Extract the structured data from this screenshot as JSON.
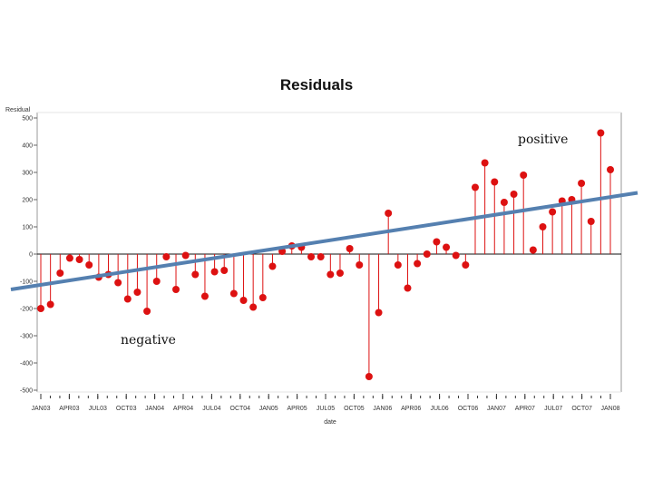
{
  "chart_data": {
    "type": "scatter",
    "title": "Residuals",
    "xlabel": "date",
    "ylabel": "Residual",
    "ylim": [
      -500,
      500
    ],
    "yticks": [
      500,
      400,
      300,
      200,
      100,
      0,
      -100,
      -200,
      -300,
      -400,
      -500
    ],
    "xticklabels": [
      "JAN03",
      "APR03",
      "JUL03",
      "OCT03",
      "JAN04",
      "APR04",
      "JUL04",
      "OCT04",
      "JAN05",
      "APR05",
      "JUL05",
      "OCT05",
      "JAN06",
      "APR06",
      "JUL06",
      "OCT06",
      "JAN07",
      "APR07",
      "JUL07",
      "OCT07",
      "JAN08"
    ],
    "grid": false,
    "series": [
      {
        "name": "Residual",
        "style": "needle",
        "color": "#dd1111",
        "values": [
          -200,
          -185,
          -70,
          -15,
          -20,
          -40,
          -85,
          -75,
          -105,
          -165,
          -140,
          -210,
          -100,
          -10,
          -130,
          -5,
          -75,
          -155,
          -65,
          -60,
          -145,
          -170,
          -195,
          -160,
          -45,
          10,
          30,
          25,
          -10,
          -10,
          -75,
          -70,
          20,
          -40,
          -450,
          -215,
          150,
          -40,
          -125,
          -35,
          0,
          45,
          25,
          -5,
          -40,
          245,
          335,
          265,
          190,
          220,
          290,
          15,
          100,
          155,
          195,
          200,
          260,
          120,
          445,
          310
        ]
      }
    ],
    "trendline": {
      "color": "#5580b0",
      "start": -130,
      "end": 225
    },
    "annotations": [
      "positive",
      "negative"
    ]
  }
}
